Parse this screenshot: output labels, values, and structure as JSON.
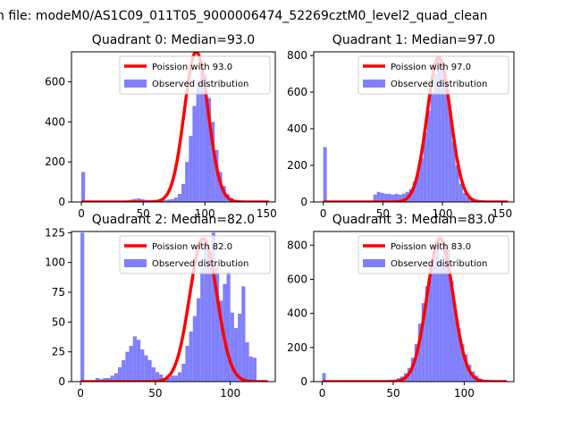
{
  "figure": {
    "suptitle": "n file: modeM0/AS1C09_011T05_9000006474_52269cztM0_level2_quad_clean"
  },
  "colors": {
    "hist": "#8080ff",
    "poisson": "#ff0000",
    "axis": "#000000"
  },
  "chart_data": [
    {
      "type": "bar",
      "title": "Quadrant 0: Median=93.0",
      "median": 93.0,
      "legend": [
        "Poission with 93.0",
        "Observed distribution"
      ],
      "xlim": [
        -8,
        157
      ],
      "ylim": [
        0,
        750
      ],
      "xticks": [
        0,
        50,
        100,
        150
      ],
      "yticks": [
        0,
        200,
        400,
        600
      ],
      "bin_start": 0,
      "bin_width": 3,
      "values": [
        150,
        0,
        0,
        0,
        0,
        0,
        0,
        0,
        0,
        0,
        0,
        0,
        8,
        12,
        15,
        18,
        14,
        10,
        10,
        10,
        8,
        8,
        9,
        12,
        14,
        22,
        40,
        90,
        200,
        330,
        480,
        600,
        650,
        640,
        520,
        400,
        260,
        150,
        80,
        40,
        20,
        10,
        5,
        3,
        2,
        1,
        1,
        1,
        0,
        0
      ],
      "poisson_peak": 750
    },
    {
      "type": "bar",
      "title": "Quadrant 1: Median=97.0",
      "median": 97.0,
      "legend": [
        "Poission with 97.0",
        "Observed distribution"
      ],
      "xlim": [
        -8,
        160
      ],
      "ylim": [
        0,
        820
      ],
      "xticks": [
        0,
        50,
        100,
        150
      ],
      "yticks": [
        0,
        200,
        400,
        600,
        800
      ],
      "bin_start": 0,
      "bin_width": 3,
      "values": [
        300,
        0,
        0,
        0,
        0,
        0,
        0,
        0,
        0,
        0,
        0,
        0,
        0,
        0,
        40,
        55,
        50,
        45,
        45,
        40,
        45,
        40,
        45,
        55,
        70,
        110,
        160,
        240,
        380,
        500,
        600,
        700,
        780,
        760,
        650,
        500,
        330,
        200,
        100,
        50,
        25,
        12,
        6,
        3,
        1,
        1,
        0,
        0,
        0,
        0,
        0
      ],
      "poisson_peak": 790
    },
    {
      "type": "bar",
      "title": "Quadrant 2: Median=82.0",
      "median": 82.0,
      "legend": [
        "Poission with 82.0",
        "Observed distribution"
      ],
      "xlim": [
        -6,
        130
      ],
      "ylim": [
        0,
        126
      ],
      "xticks": [
        0,
        50,
        100
      ],
      "yticks": [
        0,
        25,
        50,
        75,
        100,
        125
      ],
      "bin_start": 0,
      "bin_width": 2.5,
      "values": [
        125,
        0,
        0,
        0,
        3,
        2,
        3,
        3,
        5,
        7,
        12,
        18,
        25,
        30,
        38,
        35,
        27,
        22,
        18,
        12,
        8,
        6,
        3,
        3,
        5,
        5,
        8,
        15,
        30,
        42,
        55,
        70,
        95,
        115,
        108,
        125,
        96,
        68,
        82,
        92,
        58,
        45,
        57,
        80,
        33,
        21,
        20,
        0,
        0,
        0
      ],
      "poisson_peak": 120
    },
    {
      "type": "bar",
      "title": "Quadrant 3: Median=83.0",
      "median": 83.0,
      "legend": [
        "Poission with 83.0",
        "Observed distribution"
      ],
      "xlim": [
        -6,
        135
      ],
      "ylim": [
        0,
        880
      ],
      "xticks": [
        0,
        50,
        100
      ],
      "yticks": [
        0,
        200,
        400,
        600,
        800
      ],
      "bin_start": 0,
      "bin_width": 2.5,
      "values": [
        50,
        0,
        0,
        0,
        0,
        0,
        0,
        0,
        0,
        0,
        0,
        0,
        0,
        0,
        0,
        0,
        0,
        5,
        5,
        10,
        12,
        20,
        30,
        50,
        80,
        140,
        220,
        340,
        460,
        560,
        680,
        760,
        800,
        700,
        820,
        780,
        590,
        420,
        310,
        220,
        160,
        100,
        60,
        35,
        18,
        8,
        4,
        2,
        1,
        0
      ],
      "poisson_peak": 840
    }
  ]
}
